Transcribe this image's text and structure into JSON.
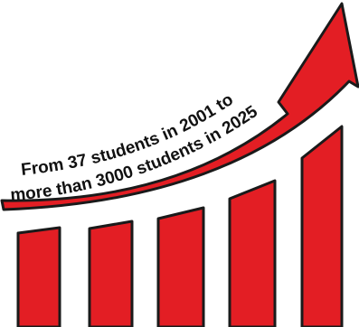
{
  "illustration": {
    "line1": "From 37 students in 2001 to",
    "line2": "more than 3000 students in 2025",
    "colors": {
      "fill": "#e31e24",
      "outline": "#1a1a1a",
      "text": "#111111",
      "background": "#ffffff"
    },
    "bar_count": 5
  }
}
